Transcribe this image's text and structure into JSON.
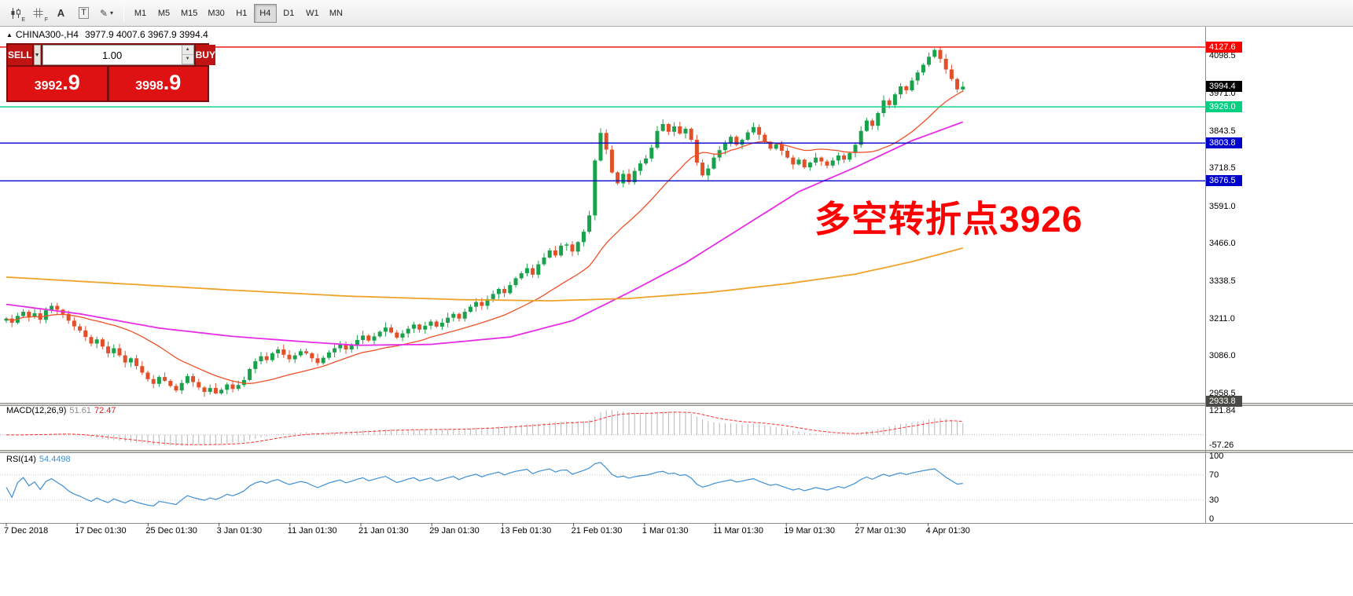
{
  "toolbar": {
    "icons": [
      {
        "name": "chart-window-icon",
        "motif": "candles",
        "letter": "E"
      },
      {
        "name": "chart-template-icon",
        "motif": "grid",
        "letter": "F"
      },
      {
        "name": "font-tool-icon",
        "motif": "text",
        "letter": "A"
      },
      {
        "name": "text-box-tool-icon",
        "motif": "boxed-text",
        "letter": "T"
      },
      {
        "name": "drawing-tools-icon",
        "motif": "pen",
        "letter": "",
        "dropdown": true
      }
    ],
    "timeframes": [
      "M1",
      "M5",
      "M15",
      "M30",
      "H1",
      "H4",
      "D1",
      "W1",
      "MN"
    ],
    "active_timeframe": "H4"
  },
  "chart_header": {
    "collapse_icon": "▲",
    "symbol_period": "CHINA300-,H4",
    "ohlc": "3977.9 4007.6 3967.9 3994.4"
  },
  "one_click": {
    "sell_label": "SELL",
    "buy_label": "BUY",
    "volume": "1.00",
    "bid_main": "3992",
    "bid_pips": ".9",
    "ask_main": "3998",
    "ask_pips": ".9"
  },
  "chart_data": {
    "type": "candlestick",
    "symbol": "CHINA300-",
    "timeframe": "H4",
    "price_range": [
      2928,
      4191
    ],
    "y_ticks": [
      "4098.5",
      "3971.0",
      "3843.5",
      "3718.5",
      "3591.0",
      "3466.0",
      "3338.5",
      "3211.0",
      "3086.0",
      "2958.5"
    ],
    "x_labels": [
      "7 Dec 2018",
      "17 Dec 01:30",
      "25 Dec 01:30",
      "3 Jan 01:30",
      "11 Jan 01:30",
      "21 Jan 01:30",
      "29 Jan 01:30",
      "13 Feb 01:30",
      "21 Feb 01:30",
      "1 Mar 01:30",
      "11 Mar 01:30",
      "19 Mar 01:30",
      "27 Mar 01:30",
      "4 Apr 01:30"
    ],
    "first_open": 3205,
    "closes": [
      3212,
      3198,
      3221,
      3235,
      3218,
      3230,
      3208,
      3240,
      3255,
      3242,
      3228,
      3205,
      3186,
      3172,
      3150,
      3128,
      3142,
      3118,
      3095,
      3112,
      3088,
      3064,
      3078,
      3052,
      3030,
      3008,
      2992,
      3015,
      3002,
      2985,
      2970,
      2995,
      3018,
      2998,
      2980,
      2965,
      2978,
      2960,
      2972,
      2990,
      2975,
      2988,
      3005,
      3042,
      3068,
      3085,
      3072,
      3095,
      3108,
      3090,
      3075,
      3088,
      3102,
      3095,
      3078,
      3062,
      3080,
      3098,
      3112,
      3125,
      3108,
      3122,
      3140,
      3155,
      3138,
      3152,
      3168,
      3182,
      3165,
      3148,
      3162,
      3178,
      3192,
      3175,
      3188,
      3202,
      3185,
      3198,
      3215,
      3228,
      3212,
      3235,
      3252,
      3268,
      3255,
      3278,
      3295,
      3312,
      3298,
      3325,
      3348,
      3365,
      3382,
      3360,
      3395,
      3418,
      3442,
      3425,
      3458,
      3462,
      3438,
      3470,
      3505,
      3560,
      3745,
      3838,
      3782,
      3705,
      3668,
      3700,
      3672,
      3710,
      3735,
      3752,
      3788,
      3845,
      3868,
      3842,
      3860,
      3836,
      3852,
      3815,
      3738,
      3695,
      3718,
      3755,
      3780,
      3802,
      3825,
      3798,
      3815,
      3840,
      3858,
      3832,
      3808,
      3785,
      3800,
      3778,
      3755,
      3732,
      3748,
      3722,
      3738,
      3755,
      3742,
      3728,
      3745,
      3762,
      3748,
      3770,
      3798,
      3845,
      3880,
      3862,
      3905,
      3948,
      3932,
      3968,
      3995,
      3982,
      4015,
      4042,
      4068,
      4095,
      4118,
      4088,
      4052,
      4020,
      3985,
      3994.4
    ],
    "up_color": "#1aa14b",
    "down_color": "#e2502a",
    "moving_averages": {
      "fast": {
        "type": "sma",
        "period": 20,
        "color": "#f05028"
      },
      "mid": {
        "color": "#e52ee5",
        "points": [
          [
            0,
            3260
          ],
          [
            13,
            3228
          ],
          [
            27,
            3180
          ],
          [
            40,
            3152
          ],
          [
            54,
            3132
          ],
          [
            62,
            3122
          ],
          [
            75,
            3125
          ],
          [
            89,
            3150
          ],
          [
            100,
            3205
          ],
          [
            110,
            3300
          ],
          [
            120,
            3400
          ],
          [
            130,
            3520
          ],
          [
            140,
            3640
          ],
          [
            150,
            3722
          ],
          [
            160,
            3812
          ],
          [
            169,
            3875
          ]
        ]
      },
      "slow": {
        "color": "#efa32b",
        "points": [
          [
            0,
            3352
          ],
          [
            20,
            3330
          ],
          [
            40,
            3308
          ],
          [
            60,
            3288
          ],
          [
            80,
            3276
          ],
          [
            96,
            3272
          ],
          [
            110,
            3280
          ],
          [
            124,
            3300
          ],
          [
            138,
            3330
          ],
          [
            150,
            3362
          ],
          [
            160,
            3404
          ],
          [
            169,
            3450
          ]
        ]
      }
    },
    "hlines": [
      {
        "price": 4127.6,
        "label": "4127.6",
        "color": "#ff0000"
      },
      {
        "price": 3926.0,
        "label": "3926.0",
        "color": "#00cf80"
      },
      {
        "price": 3803.8,
        "label": "3803.8",
        "color": "#0000cd"
      },
      {
        "price": 3676.5,
        "label": "3676.5",
        "color": "#0000cd"
      }
    ],
    "price_markers": [
      {
        "label": "3994.4",
        "price": 3994.4,
        "bg": "#000000"
      },
      {
        "label": "2933.8",
        "price": 2933.8,
        "bg": "#4a4a45"
      }
    ],
    "annotation": {
      "text": "多空转折点3926",
      "color": "#ff0000"
    },
    "macd": {
      "label": "MACD(12,26,9)",
      "value_main": "51.61",
      "value_signal": "72.47",
      "params": [
        12,
        26,
        9
      ],
      "scale_labels": [
        "121.84",
        "-57.26"
      ],
      "hist_color": "#b6b6b6",
      "signal_color": "#ff3030"
    },
    "rsi": {
      "label": "RSI(14)",
      "value": "54.4498",
      "period": 14,
      "levels": [
        "100",
        "70",
        "30",
        "0"
      ],
      "color": "#3f8fd2"
    }
  }
}
